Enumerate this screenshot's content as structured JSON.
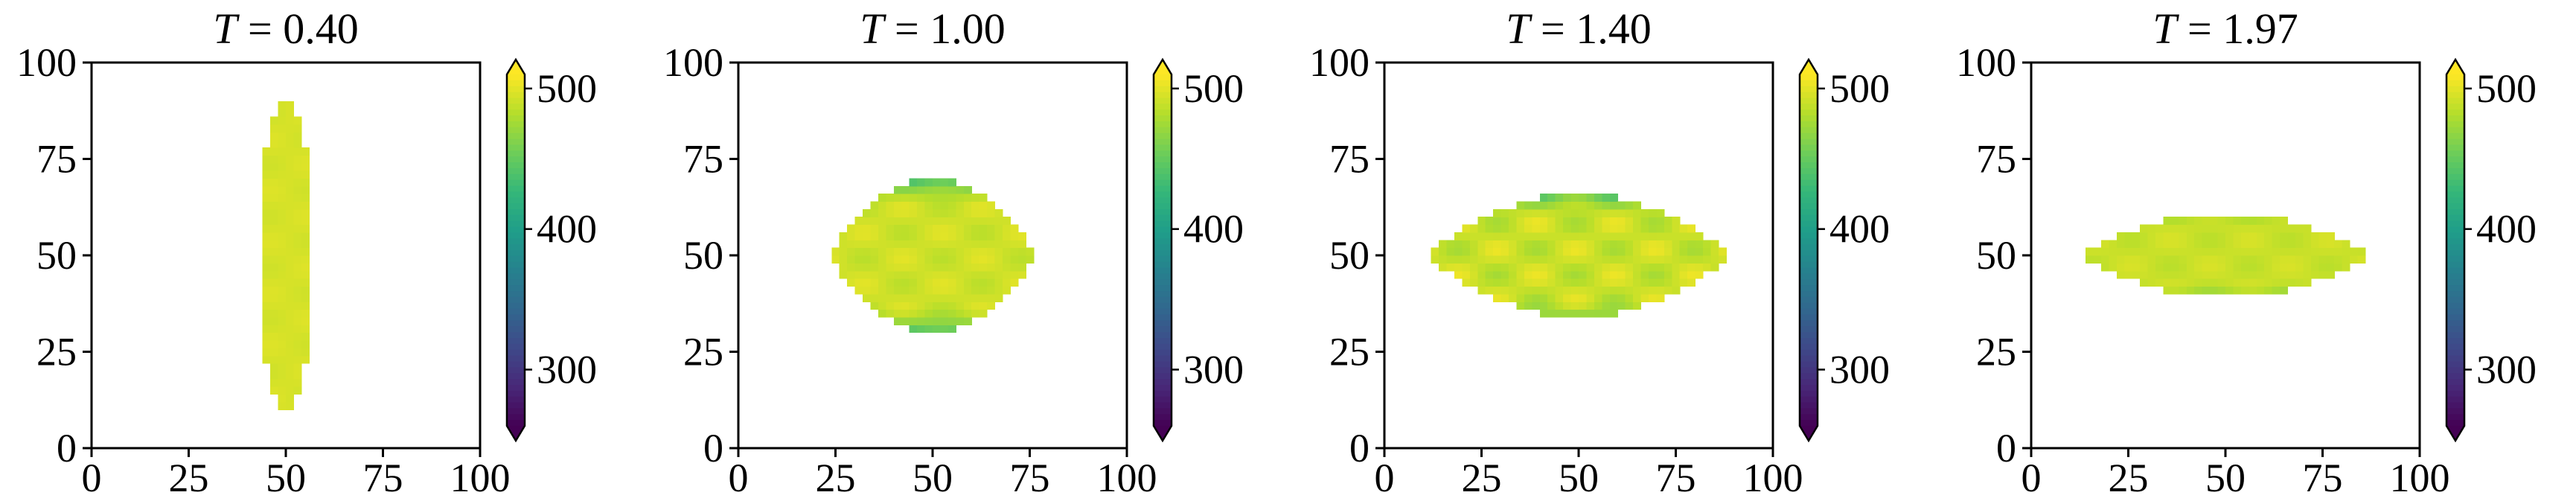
{
  "figure": {
    "panel_count": 4,
    "colormap": "viridis",
    "colors": {
      "viridis": [
        "#440154",
        "#482878",
        "#3e4989",
        "#31688e",
        "#26828e",
        "#1f9e89",
        "#35b779",
        "#6ece58",
        "#b5de2b",
        "#fde725"
      ],
      "axes": "#000000",
      "background": "#ffffff"
    }
  },
  "chart_data": [
    {
      "type": "heatmap",
      "title": "T = 0.40",
      "time_label": "T",
      "time_value": "0.40",
      "xlim": [
        0,
        100
      ],
      "ylim": [
        0,
        100
      ],
      "xticks": [
        "0",
        "25",
        "50",
        "75",
        "100"
      ],
      "yticks": [
        "0",
        "25",
        "50",
        "75",
        "100"
      ],
      "colorbar": {
        "vmin": 260,
        "vmax": 510,
        "extend": "both",
        "ticks": [
          "300",
          "400",
          "500"
        ]
      },
      "region": {
        "shape": "ellipse",
        "center": [
          50,
          50
        ],
        "semi_x": 7,
        "semi_y": 40
      },
      "field": {
        "base": 495,
        "variation": 3,
        "edge_drop": 0,
        "top_drop": 0,
        "bottom_drop": 0
      }
    },
    {
      "type": "heatmap",
      "title": "T = 1.00",
      "time_label": "T",
      "time_value": "1.00",
      "xlim": [
        0,
        100
      ],
      "ylim": [
        0,
        100
      ],
      "xticks": [
        "0",
        "25",
        "50",
        "75",
        "100"
      ],
      "yticks": [
        "0",
        "25",
        "50",
        "75",
        "100"
      ],
      "colorbar": {
        "vmin": 260,
        "vmax": 510,
        "extend": "both",
        "ticks": [
          "300",
          "400",
          "500"
        ]
      },
      "region": {
        "shape": "lens",
        "center": [
          50,
          50
        ],
        "semi_x": 27,
        "semi_y": 20
      },
      "field": {
        "base": 492,
        "variation": 8,
        "edge_drop": 0,
        "top_drop": 60,
        "bottom_drop": 55
      }
    },
    {
      "type": "heatmap",
      "title": "T = 1.40",
      "time_label": "T",
      "time_value": "1.40",
      "xlim": [
        0,
        100
      ],
      "ylim": [
        0,
        100
      ],
      "xticks": [
        "0",
        "25",
        "50",
        "75",
        "100"
      ],
      "yticks": [
        "0",
        "25",
        "50",
        "75",
        "100"
      ],
      "colorbar": {
        "vmin": 260,
        "vmax": 510,
        "extend": "both",
        "ticks": [
          "300",
          "400",
          "500"
        ]
      },
      "region": {
        "shape": "lens",
        "center": [
          50,
          50
        ],
        "semi_x": 39,
        "semi_y": 16
      },
      "field": {
        "base": 490,
        "variation": 14,
        "edge_drop": 0,
        "top_drop": 45,
        "bottom_drop": 25
      }
    },
    {
      "type": "heatmap",
      "title": "T = 1.97",
      "time_label": "T",
      "time_value": "1.97",
      "xlim": [
        0,
        100
      ],
      "ylim": [
        0,
        100
      ],
      "xticks": [
        "0",
        "25",
        "50",
        "75",
        "100"
      ],
      "yticks": [
        "0",
        "25",
        "50",
        "75",
        "100"
      ],
      "colorbar": {
        "vmin": 260,
        "vmax": 510,
        "extend": "both",
        "ticks": [
          "300",
          "400",
          "500"
        ]
      },
      "region": {
        "shape": "lens",
        "center": [
          50,
          50
        ],
        "semi_x": 37,
        "semi_y": 11
      },
      "field": {
        "base": 490,
        "variation": 6,
        "edge_drop": 0,
        "top_drop": 15,
        "bottom_drop": 30
      }
    }
  ]
}
